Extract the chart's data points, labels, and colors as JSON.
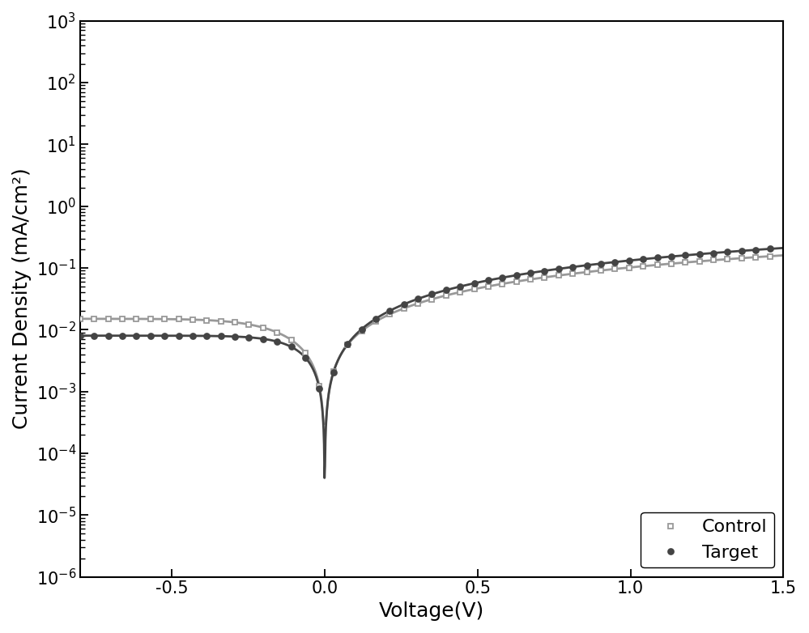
{
  "title": "",
  "xlabel": "Voltage(V)",
  "ylabel": "Current Density (mA/cm²)",
  "xlim": [
    -0.8,
    1.5
  ],
  "ylim_log": [
    -6,
    3
  ],
  "background_color": "#ffffff",
  "control_color": "#999999",
  "target_color": "#444444",
  "control_marker": "s",
  "target_marker": "o",
  "control_label": "Control",
  "target_label": "Target",
  "legend_loc": "lower right",
  "fontsize_label": 18,
  "fontsize_tick": 15,
  "fontsize_legend": 16,
  "linewidth": 2.0,
  "markersize": 5,
  "marker_every": 30,
  "control_I0": 0.015,
  "control_n": 3.5,
  "control_Rs": 8.0,
  "control_floor": 0.0003,
  "target_I0": 0.008,
  "target_n": 2.8,
  "target_Rs": 6.0,
  "target_floor": 2.5e-05
}
